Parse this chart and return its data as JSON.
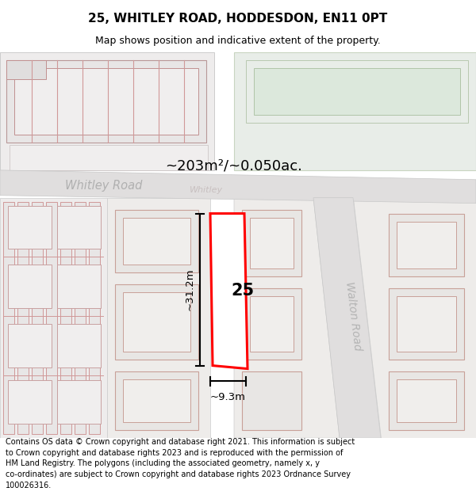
{
  "title": "25, WHITLEY ROAD, HODDESDON, EN11 0PT",
  "subtitle": "Map shows position and indicative extent of the property.",
  "footer": "Contains OS data © Crown copyright and database right 2021. This information is subject\nto Crown copyright and database rights 2023 and is reproduced with the permission of\nHM Land Registry. The polygons (including the associated geometry, namely x, y\nco-ordinates) are subject to Crown copyright and database rights 2023 Ordnance Survey\n100026316.",
  "map_bg": "#f5f3f3",
  "road_fill": "#e8e6e6",
  "block_fill": "#eeecec",
  "building_fill": "#e4e2e2",
  "building_edge": "#d09898",
  "green_fill": "#e8ede8",
  "green_edge": "#c8d4c0",
  "highlight_fill": "#ffffff",
  "highlight_edge": "#ff0000",
  "area_text": "~203m²/~0.050ac.",
  "width_text": "~9.3m",
  "height_text": "~31.2m",
  "label_25": "25",
  "road_label_whitley": "Whitley Road",
  "road_label_walton": "Walton Road",
  "title_fontsize": 11,
  "subtitle_fontsize": 9,
  "footer_fontsize": 7
}
